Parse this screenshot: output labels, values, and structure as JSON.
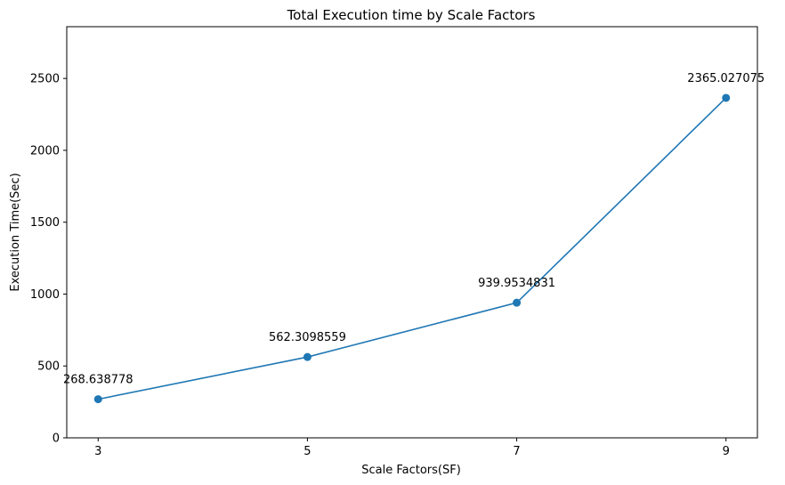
{
  "chart_data": {
    "type": "line",
    "title": "Total Execution time by Scale Factors",
    "xlabel": "Scale Factors(SF)",
    "ylabel": "Execution Time(Sec)",
    "x": [
      3,
      5,
      7,
      9
    ],
    "series": [
      {
        "values": [
          268.638778,
          562.3098559,
          939.9534831,
          2365.027075
        ],
        "labels": [
          "268.638778",
          "562.3098559",
          "939.9534831",
          "2365.027075"
        ],
        "color": "#1f77b4",
        "marker": "circle"
      }
    ],
    "xticks": [
      3,
      5,
      7,
      9
    ],
    "xtick_labels": [
      "3",
      "5",
      "7",
      "9"
    ],
    "yticks": [
      0,
      500,
      1000,
      1500,
      2000,
      2500
    ],
    "ytick_labels": [
      "0",
      "500",
      "1000",
      "1500",
      "2000",
      "2500"
    ],
    "xlim": [
      2.7,
      9.3
    ],
    "ylim": [
      0,
      2860
    ],
    "grid": false,
    "legend": "none"
  }
}
